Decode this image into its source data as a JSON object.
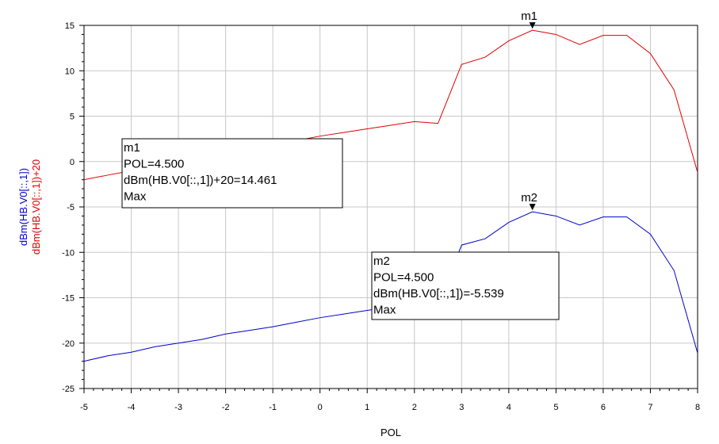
{
  "chart_data": {
    "type": "line",
    "xlabel": "POL",
    "ylabel_lines": [
      "dBm(HB.V0[::,1])",
      "dBm(HB.V0[::,1])+20"
    ],
    "ylabel_colors": [
      "#0000cc",
      "#dd0000"
    ],
    "xlim": [
      -5,
      8
    ],
    "ylim": [
      -25,
      15
    ],
    "x_ticks": [
      -5,
      -4,
      -3,
      -2,
      -1,
      0,
      1,
      2,
      3,
      4,
      5,
      6,
      7,
      8
    ],
    "y_ticks": [
      15,
      10,
      5,
      0,
      -5,
      -10,
      -15,
      -20,
      -25
    ],
    "grid": true,
    "series": [
      {
        "color": "#dd0000",
        "x": [
          -5,
          -4.5,
          -4,
          -3.5,
          -3,
          -2.5,
          -2,
          -1.5,
          -1,
          -0.5,
          0,
          0.5,
          1,
          1.5,
          2,
          2.5,
          3,
          3.5,
          4,
          4.5,
          5,
          5.5,
          6,
          6.5,
          7,
          7.5,
          8
        ],
        "y": [
          -2.0,
          -1.5,
          -1.0,
          -0.5,
          0.0,
          0.4,
          0.9,
          1.4,
          1.8,
          2.3,
          2.8,
          3.2,
          3.6,
          4.0,
          4.4,
          4.2,
          10.7,
          11.5,
          13.3,
          14.461,
          14.0,
          12.9,
          13.9,
          13.9,
          11.9,
          7.9,
          -1.2
        ]
      },
      {
        "color": "#0000cc",
        "x": [
          -5,
          -4.5,
          -4,
          -3.5,
          -3,
          -2.5,
          -2,
          -1.5,
          -1,
          -0.5,
          0,
          0.5,
          1,
          1.5,
          2,
          2.5,
          3,
          3.5,
          4,
          4.5,
          5,
          5.5,
          6,
          6.5,
          7,
          7.5,
          8
        ],
        "y": [
          -22.0,
          -21.4,
          -21.0,
          -20.4,
          -20.0,
          -19.6,
          -19.0,
          -18.6,
          -18.2,
          -17.7,
          -17.2,
          -16.8,
          -16.4,
          -16.0,
          -15.6,
          -15.8,
          -9.2,
          -8.5,
          -6.7,
          -5.539,
          -6.0,
          -7.0,
          -6.1,
          -6.1,
          -8.0,
          -12.0,
          -21.1
        ]
      }
    ],
    "markers": [
      {
        "label": "m1",
        "x": 4.5,
        "y": 14.461,
        "lines": [
          "m1",
          "POL=4.500",
          "dBm(HB.V0[::,1])+20=14.461",
          "Max"
        ]
      },
      {
        "label": "m2",
        "x": 4.5,
        "y": -5.539,
        "lines": [
          "m2",
          "POL=4.500",
          "dBm(HB.V0[::,1])=-5.539",
          "Max"
        ]
      }
    ]
  }
}
